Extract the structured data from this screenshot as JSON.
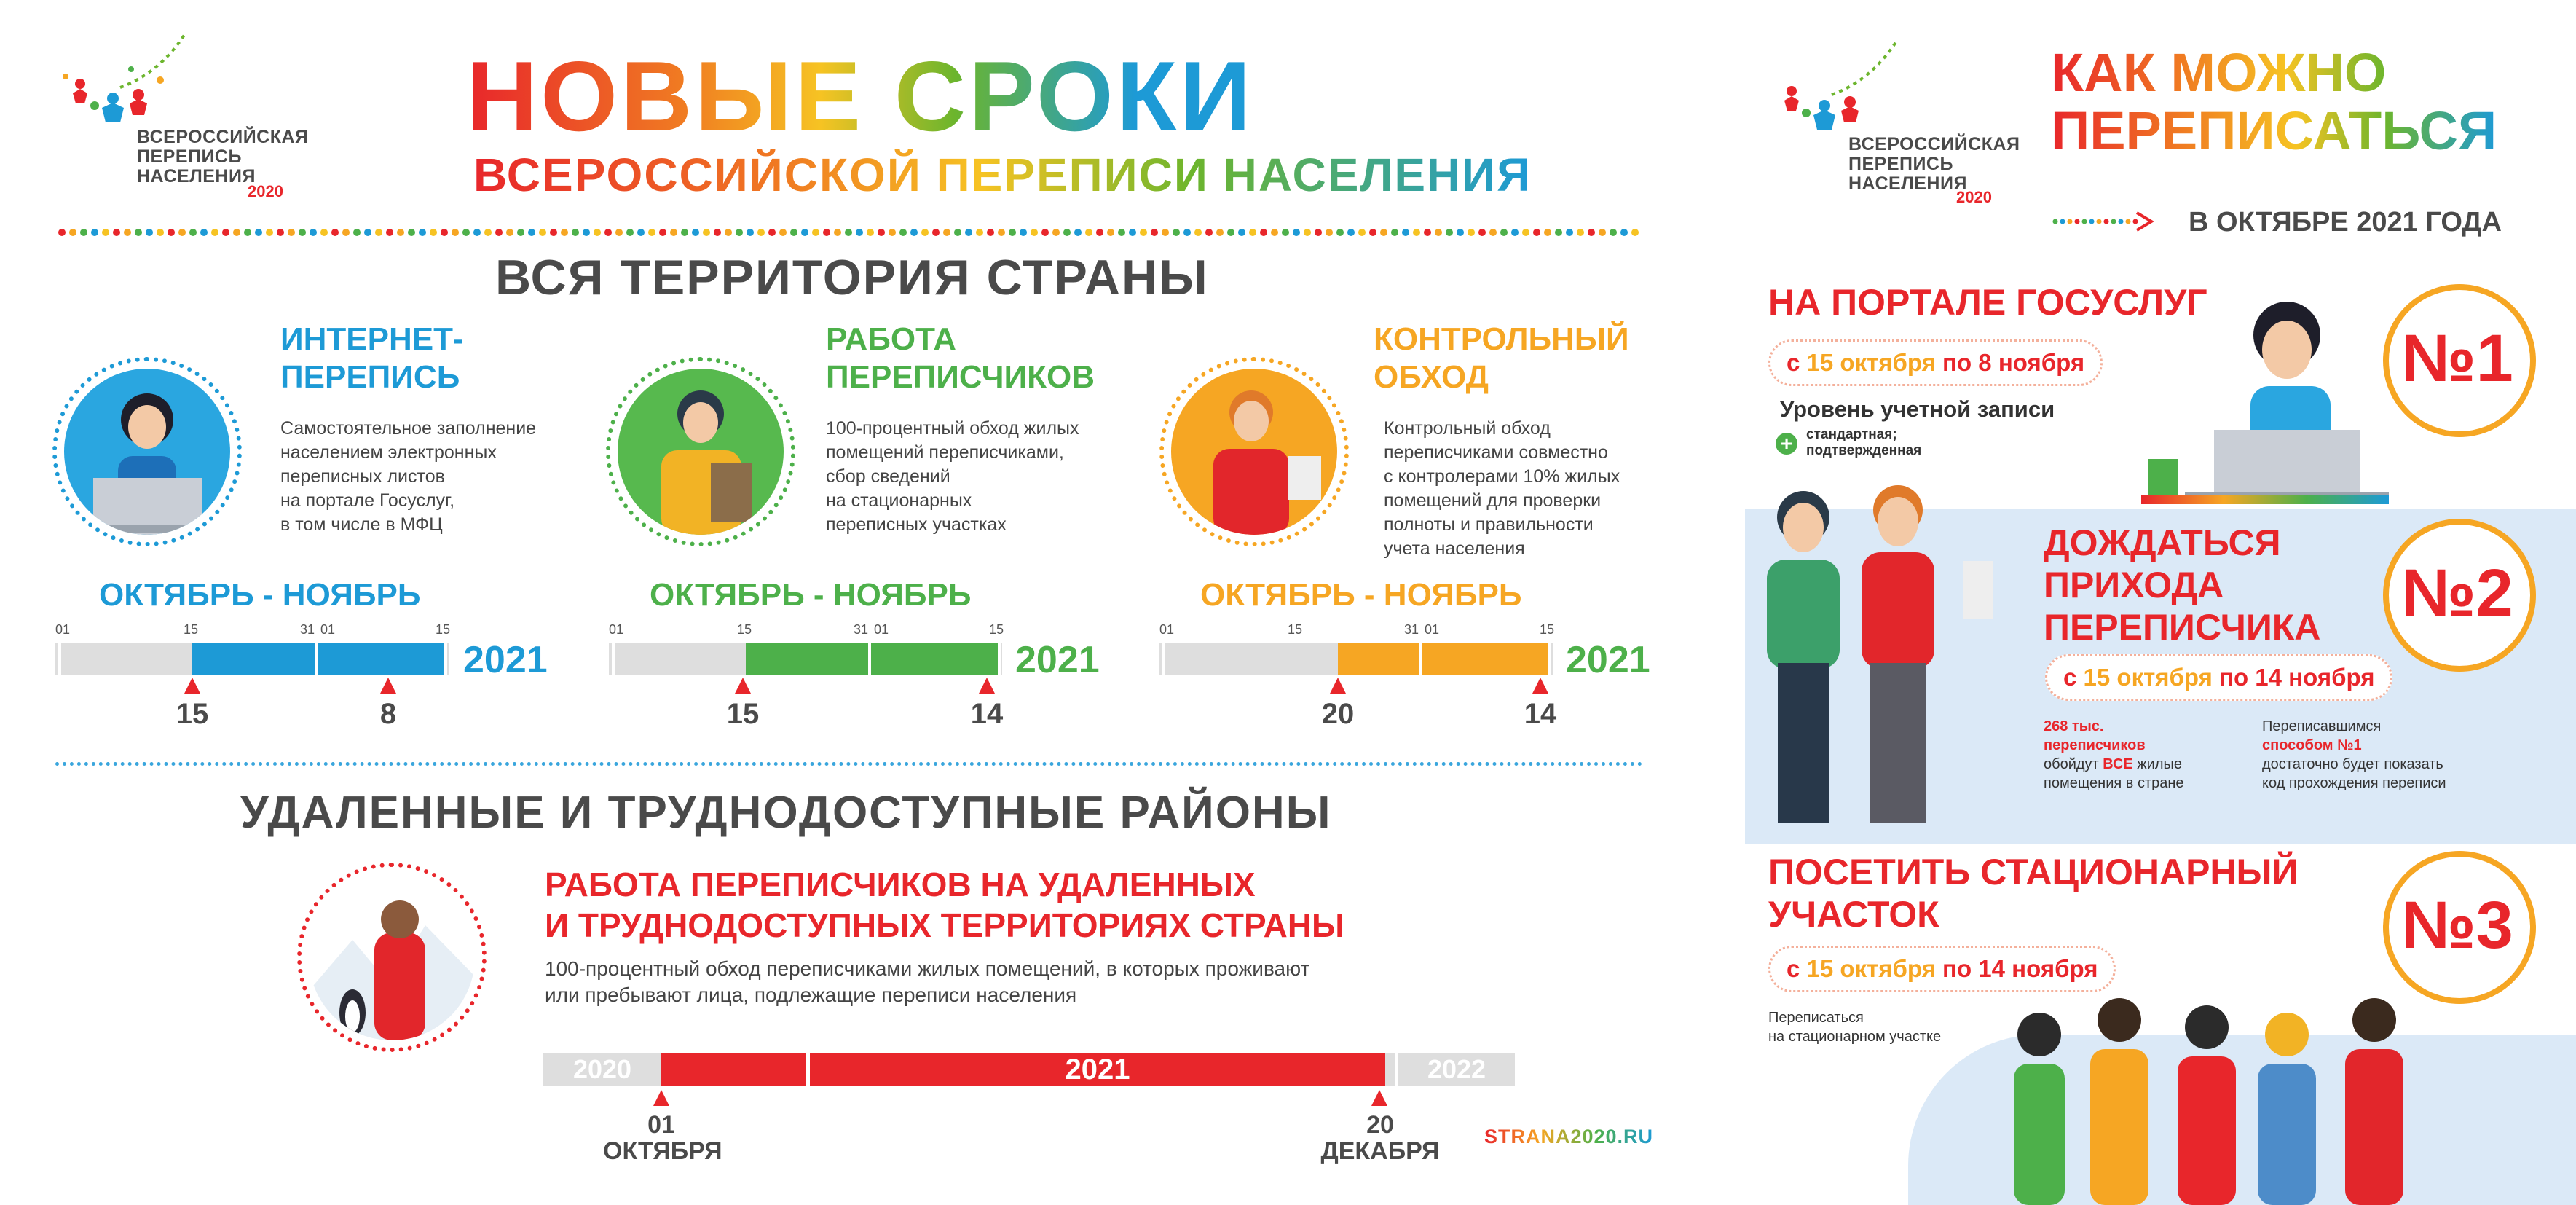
{
  "logo": {
    "line1": "ВСЕРОССИЙСКАЯ",
    "line2": "ПЕРЕПИСЬ",
    "line3": "НАСЕЛЕНИЯ",
    "year": "2020"
  },
  "left": {
    "title_main": "НОВЫЕ СРОКИ",
    "title_sub": "ВСЕРОССИЙСКОЙ ПЕРЕПИСИ НАСЕЛЕНИЯ",
    "section1_title": "ВСЯ ТЕРРИТОРИЯ СТРАНЫ",
    "columns": [
      {
        "title": "ИНТЕРНЕТ-\nПЕРЕПИСЬ",
        "desc": "Самостоятельное заполнение\nнаселением электронных\nпереписных листов\nна портале Госуслуг,\nв том числе в МФЦ",
        "period": "ОКТЯБРЬ - НОЯБРЬ",
        "ticks": [
          "01",
          "15",
          "31",
          "01",
          "15"
        ],
        "year": "2021",
        "start": "15",
        "end": "8",
        "color": "#1d9ad6"
      },
      {
        "title": "РАБОТА\nПЕРЕПИСЧИКОВ",
        "desc": "100-процентный обход жилых\nпомещений переписчиками,\nсбор сведений\nна стационарных\nпереписных участках",
        "period": "ОКТЯБРЬ - НОЯБРЬ",
        "ticks": [
          "01",
          "15",
          "31",
          "01",
          "15"
        ],
        "year": "2021",
        "start": "15",
        "end": "14",
        "color": "#4db04a"
      },
      {
        "title": "КОНТРОЛЬНЫЙ\nОБХОД",
        "desc": "Контрольный обход\nпереписчиками совместно\nс контролерами 10% жилых\nпомещений для проверки\nполноты и правильности\nучета населения",
        "period": "ОКТЯБРЬ - НОЯБРЬ",
        "ticks": [
          "01",
          "15",
          "31",
          "01",
          "15"
        ],
        "year": "2021",
        "start": "20",
        "end": "14",
        "color": "#f6a623"
      }
    ],
    "section2_title": "УДАЛЕННЫЕ И ТРУДНОДОСТУПНЫЕ РАЙОНЫ",
    "remote_title": "РАБОТА ПЕРЕПИСЧИКОВ НА УДАЛЕННЫХ\nИ ТРУДНОДОСТУПНЫХ ТЕРРИТОРИЯХ СТРАНЫ",
    "remote_desc": "100-процентный обход переписчиками жилых помещений, в которых проживают\nили пребывают лица, подлежащие переписи населения",
    "remote_years": [
      "2020",
      "2021",
      "2022"
    ],
    "remote_start_day": "01",
    "remote_start_month": "ОКТЯБРЯ",
    "remote_end_day": "20",
    "remote_end_month": "ДЕКАБРЯ",
    "site": "STRANA2020.RU"
  },
  "right": {
    "title_line1": "КАК МОЖНО",
    "title_line2": "ПЕРЕПИСАТЬСЯ",
    "subtitle": "В ОКТЯБРЕ 2021 ГОДА",
    "way1": {
      "heading": "НА ПОРТАЛЕ ГОСУСЛУГ",
      "date_pre": "с",
      "date_a": "15 октября",
      "date_mid": "по",
      "date_b": "8 ноября",
      "account_label": "Уровень учетной записи",
      "account_value": "стандартная;\nподтвержденная",
      "number": "№1"
    },
    "way2": {
      "heading": "ДОЖДАТЬСЯ\nПРИХОДА\nПЕРЕПИСЧИКА",
      "date_pre": "с",
      "date_a": "15 октября",
      "date_mid": "по",
      "date_b": "14 ноября",
      "note_left_red": "268 тыс.\nпереписчиков",
      "note_left_a": "обойдут ",
      "note_left_b": "ВСЕ",
      "note_left_c": " жилые\nпомещения в стране",
      "note_right_a": "Переписавшимся\n",
      "note_right_red": "способом №1",
      "note_right_b": "\nдостаточно будет показать\nкод прохождения переписи",
      "number": "№2"
    },
    "way3": {
      "heading": "ПОСЕТИТЬ СТАЦИОНАРНЫЙ\nУЧАСТОК",
      "date_pre": "с",
      "date_a": "15 октября",
      "date_mid": "по",
      "date_b": "14 ноября",
      "note": "Переписаться\nна стационарном участке",
      "number": "№3"
    }
  },
  "colors": {
    "red": "#e8262b",
    "blue": "#1d9ad6",
    "green": "#4db04a",
    "orange": "#f6a623",
    "gray_text": "#4a4a4a",
    "light_blue_band": "#dbe9f7"
  }
}
